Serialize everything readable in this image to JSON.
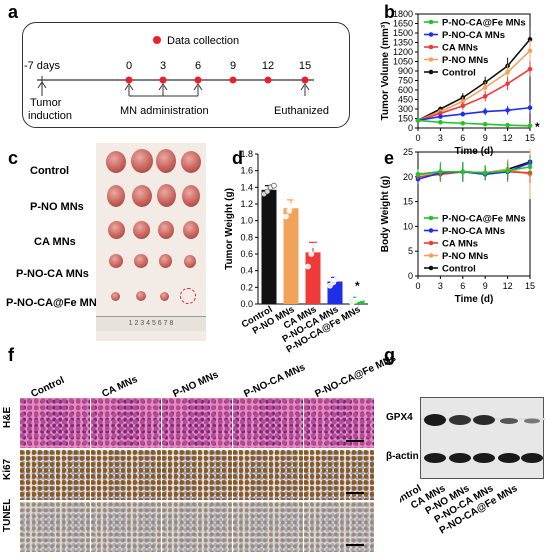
{
  "panels": {
    "a": "a",
    "b": "b",
    "c": "c",
    "d": "d",
    "e": "e",
    "f": "f",
    "g": "g"
  },
  "timeline": {
    "legend": "Data collection",
    "days": [
      "-7 days",
      "0",
      "3",
      "6",
      "9",
      "12",
      "15"
    ],
    "tumor_induction": "Tumor\ninduction",
    "mn_administration": "MN administration",
    "euthanized": "Euthanized",
    "colors": {
      "dot": "#e8212b",
      "line": "#333333"
    }
  },
  "groups": [
    "P-NO-CA@Fe MNs",
    "P-NO-CA MNs",
    "CA MNs",
    "P-NO MNs",
    "Control"
  ],
  "group_colors": {
    "P-NO-CA@Fe MNs": "#22c42a",
    "P-NO-CA MNs": "#1f2fe8",
    "CA MNs": "#f03a3a",
    "P-NO MNs": "#f2a35b",
    "Control": "#111111"
  },
  "chart_data": [
    {
      "type": "line",
      "panel": "b",
      "ylabel": "Tumor Volume (mm³)",
      "xlabel": "Time (d)",
      "x": [
        0,
        3,
        6,
        9,
        12,
        15
      ],
      "xlim": [
        0,
        15
      ],
      "ylim": [
        0,
        1800
      ],
      "yticks": [
        0,
        150,
        300,
        450,
        600,
        750,
        900,
        1050,
        1200,
        1350,
        1500,
        1650,
        1800
      ],
      "xticks": [
        0,
        3,
        6,
        9,
        12,
        15
      ],
      "series": [
        {
          "name": "P-NO-CA@Fe MNs",
          "values": [
            120,
            90,
            75,
            60,
            45,
            35
          ],
          "err": [
            10,
            10,
            10,
            8,
            8,
            8
          ]
        },
        {
          "name": "P-NO-CA MNs",
          "values": [
            120,
            180,
            220,
            260,
            280,
            320
          ],
          "err": [
            15,
            30,
            40,
            60,
            70,
            90
          ]
        },
        {
          "name": "CA MNs",
          "values": [
            120,
            230,
            350,
            500,
            700,
            930
          ],
          "err": [
            15,
            40,
            60,
            80,
            100,
            120
          ]
        },
        {
          "name": "P-NO MNs",
          "values": [
            120,
            260,
            420,
            640,
            880,
            1220
          ],
          "err": [
            15,
            40,
            70,
            90,
            120,
            170
          ]
        },
        {
          "name": "Control",
          "values": [
            120,
            300,
            480,
            720,
            980,
            1400
          ],
          "err": [
            15,
            40,
            70,
            90,
            130,
            200
          ]
        }
      ],
      "annotation": "*",
      "legend": "top-left"
    },
    {
      "type": "bar",
      "panel": "d",
      "ylabel": "Tumor Weight (g)",
      "categories": [
        "Control",
        "P-NO MNs",
        "CA MNs",
        "P-NO-CA MNs",
        "P-NO-CA@Fe MNs"
      ],
      "values": [
        1.37,
        1.15,
        0.62,
        0.27,
        0.05
      ],
      "err": [
        0.05,
        0.1,
        0.12,
        0.05,
        0.03
      ],
      "points": [
        [
          1.32,
          1.35,
          1.4,
          1.42
        ],
        [
          1.05,
          1.12,
          1.18,
          1.26
        ],
        [
          0.45,
          0.6,
          0.7,
          0.78
        ],
        [
          0.22,
          0.26,
          0.3,
          0.32
        ],
        [
          0.02,
          0.04,
          0.06,
          0.07
        ]
      ],
      "ylim": [
        0,
        1.8
      ],
      "yticks": [
        0.0,
        0.2,
        0.4,
        0.6,
        0.8,
        1.0,
        1.2,
        1.4,
        1.6,
        1.8
      ],
      "annotation": "*"
    },
    {
      "type": "line",
      "panel": "e",
      "ylabel": "Body Weight (g)",
      "xlabel": "Time (d)",
      "x": [
        0,
        3,
        6,
        9,
        12,
        15
      ],
      "xlim": [
        0,
        15
      ],
      "ylim": [
        0,
        25
      ],
      "yticks": [
        0,
        5,
        10,
        15,
        20,
        25
      ],
      "xticks": [
        0,
        3,
        6,
        9,
        12,
        15
      ],
      "series": [
        {
          "name": "P-NO-CA@Fe MNs",
          "values": [
            20.5,
            21,
            21,
            20.8,
            21.2,
            22
          ],
          "err": [
            1,
            2,
            2,
            1.5,
            1.5,
            2
          ]
        },
        {
          "name": "P-NO-CA MNs",
          "values": [
            19.5,
            20.8,
            21,
            20.5,
            21,
            22.8
          ],
          "err": [
            1,
            1.5,
            1.5,
            1,
            1.5,
            1.5
          ]
        },
        {
          "name": "CA MNs",
          "values": [
            20,
            20.5,
            21,
            20.8,
            21,
            20.8
          ],
          "err": [
            1,
            1.5,
            1.5,
            1.5,
            2,
            2
          ]
        },
        {
          "name": "P-NO MNs",
          "values": [
            20.5,
            20.5,
            21,
            20.8,
            21.5,
            20.5
          ],
          "err": [
            1,
            1.5,
            1.5,
            1.5,
            2,
            5
          ]
        },
        {
          "name": "Control",
          "values": [
            20.5,
            21,
            21,
            20.8,
            21.5,
            23
          ],
          "err": [
            1,
            1.5,
            2,
            1.5,
            2,
            2
          ]
        }
      ],
      "legend": "bottom-left"
    }
  ],
  "photo": {
    "row_labels": [
      "Control",
      "P-NO MNs",
      "CA MNs",
      "P-NO-CA MNs",
      "P-NO-CA@Fe MNs"
    ],
    "ruler": "1 2 3 4 5 6 7 8"
  },
  "histology": {
    "columns": [
      "Control",
      "CA MNs",
      "P-NO MNs",
      "P-NO-CA MNs",
      "P-NO-CA@Fe MNs"
    ],
    "rows": [
      "H&E",
      "Ki67",
      "TUNEL"
    ]
  },
  "western": {
    "bands": [
      "GPX4",
      "β-actin"
    ],
    "lanes": [
      "Control",
      "CA MNs",
      "P-NO MNs",
      "P-NO-CA MNs",
      "P-NO-CA@Fe MNs"
    ]
  }
}
